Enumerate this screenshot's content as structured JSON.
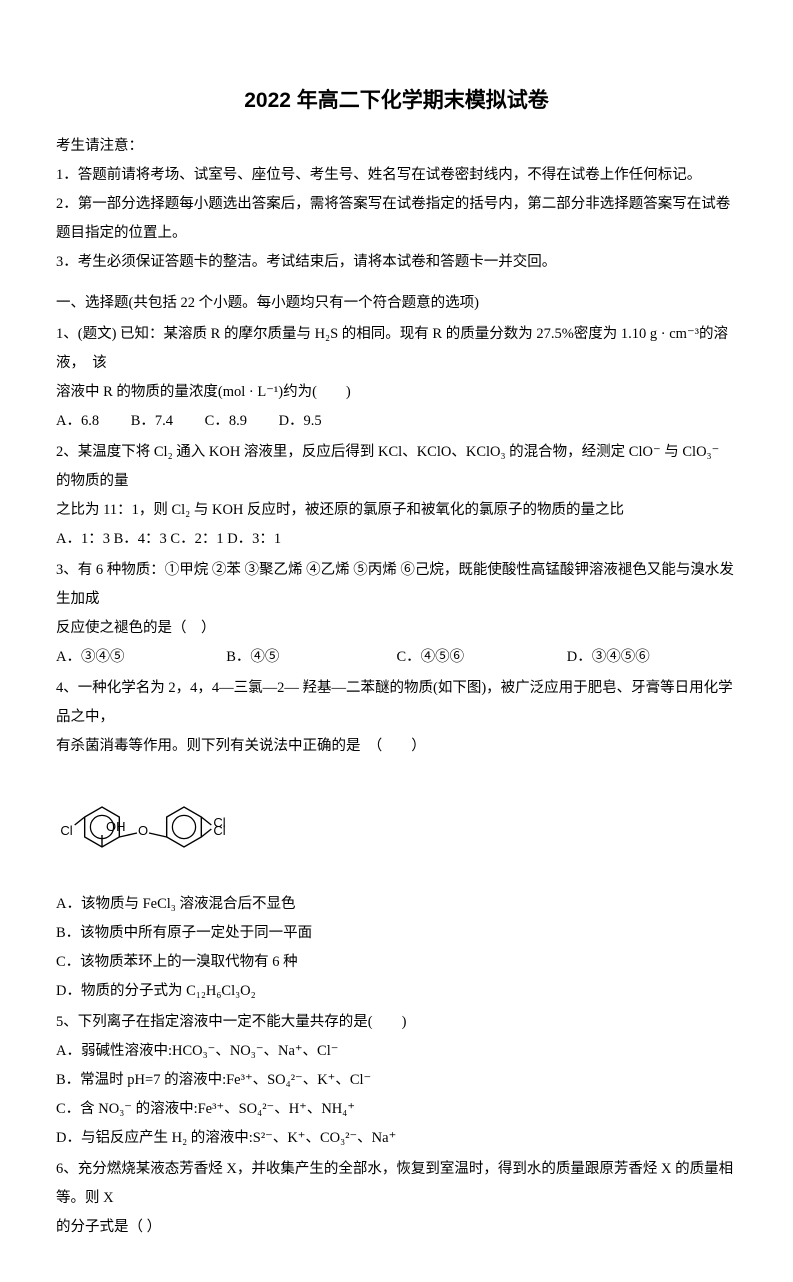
{
  "title": "2022 年高二下化学期末模拟试卷",
  "notice": {
    "head": "考生请注意：",
    "n1": "1．答题前请将考场、试室号、座位号、考生号、姓名写在试卷密封线内，不得在试卷上作任何标记。",
    "n2": "2．第一部分选择题每小题选出答案后，需将答案写在试卷指定的括号内，第二部分非选择题答案写在试卷题目指定的位置上。",
    "n3": "3．考生必须保证答题卡的整洁。考试结束后，请将本试卷和答题卡一并交回。"
  },
  "section1_head": "一、选择题(共包括 22 个小题。每小题均只有一个符合题意的选项)",
  "q1": {
    "stem_a": "1、(题文) 已知：某溶质 R 的摩尔质量与 H₂S 的相同。现有 R 的质量分数为 27.5%密度为 1.10 g · cm⁻³的溶液，　该",
    "stem_b": "溶液中 R 的物质的量浓度(mol · L⁻¹)约为(　　)",
    "optA": "A．6.8",
    "optB": "B．7.4",
    "optC": "C．8.9",
    "optD": "D．9.5"
  },
  "q2": {
    "stem_a": "2、某温度下将 Cl₂ 通入 KOH 溶液里，反应后得到 KCl、KClO、KClO₃ 的混合物，经测定 ClO⁻ 与 ClO₃⁻ 的物质的量",
    "stem_b": "之比为 11：1，则 Cl₂ 与 KOH 反应时，被还原的氯原子和被氧化的氯原子的物质的量之比",
    "opts": "A．1：3 B．4：3 C．2：1 D．3：1"
  },
  "q3": {
    "stem_a": "3、有 6 种物质：①甲烷 ②苯 ③聚乙烯 ④乙烯 ⑤丙烯 ⑥己烷，既能使酸性高锰酸钾溶液褪色又能与溴水发生加成",
    "stem_b": "反应使之褪色的是（　）",
    "optA": "A．③④⑤",
    "optB": "B．④⑤",
    "optC": "C．④⑤⑥",
    "optD": "D．③④⑤⑥"
  },
  "q4": {
    "stem_a": "4、一种化学名为 2，4，4—三氯—2— 羟基—二苯醚的物质(如下图)，被广泛应用于肥皂、牙膏等日用化学品之中，",
    "stem_b": "有杀菌消毒等作用。则下列有关说法中正确的是　（　　）",
    "optA": "A．该物质与 FeCl₃ 溶液混合后不显色",
    "optB": "B．该物质中所有原子一定处于同一平面",
    "optC": "C．该物质苯环上的一溴取代物有 6 种",
    "optD": "D．物质的分子式为 C₁₂H₆Cl₃O₂"
  },
  "q5": {
    "stem": "5、下列离子在指定溶液中一定不能大量共存的是(　　)",
    "optA": "A．弱碱性溶液中:HCO₃⁻、NO₃⁻、Na⁺、Cl⁻",
    "optB": "B．常温时 pH=7 的溶液中:Fe³⁺、SO₄²⁻、K⁺、Cl⁻",
    "optC": "C．含 NO₃⁻ 的溶液中:Fe³⁺、SO₄²⁻、H⁺、NH₄⁺",
    "optD": "D．与铝反应产生 H₂ 的溶液中:S²⁻、K⁺、CO₃²⁻、Na⁺"
  },
  "q6": {
    "stem_a": "6、充分燃烧某液态芳香烃 X，并收集产生的全部水，恢复到室温时，得到水的质量跟原芳香烃 X 的质量相等。则 X",
    "stem_b": "的分子式是（ ）"
  },
  "mol_svg": {
    "width": 180,
    "height": 110,
    "stroke": "#000000",
    "stroke_width": 1.4,
    "font_size": 13,
    "labels": {
      "OH": "OH",
      "O": "O",
      "Cl_left": "Cl",
      "Cl_top": "Cl",
      "Cl_bot": "Cl"
    }
  }
}
